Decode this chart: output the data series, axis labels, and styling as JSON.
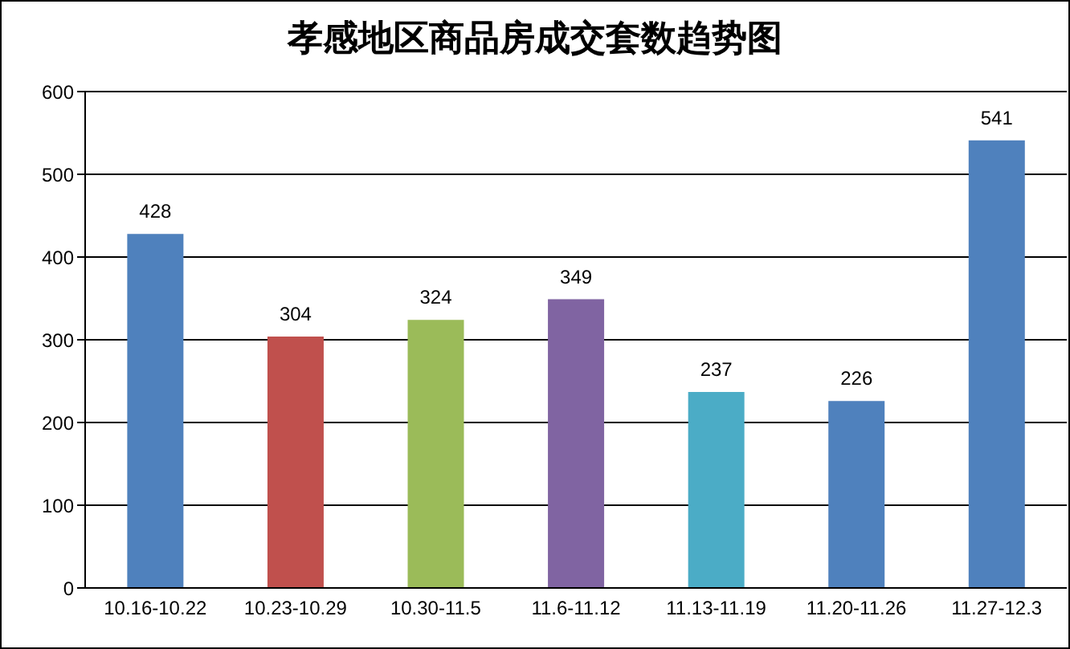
{
  "chart_data": {
    "type": "bar",
    "title": "孝感地区商品房成交套数趋势图",
    "categories": [
      "10.16-10.22",
      "10.23-10.29",
      "10.30-11.5",
      "11.6-11.12",
      "11.13-11.19",
      "11.20-11.26",
      "11.27-12.3"
    ],
    "values": [
      428,
      304,
      324,
      349,
      237,
      226,
      541
    ],
    "colors": [
      "#4f81bd",
      "#c0504d",
      "#9bbb59",
      "#8064a2",
      "#4bacc6",
      "#4f81bd",
      "#4f81bd"
    ],
    "ylim": [
      0,
      600
    ],
    "yticks": [
      0,
      100,
      200,
      300,
      400,
      500,
      600
    ],
    "grid": "y",
    "data_labels": true
  }
}
